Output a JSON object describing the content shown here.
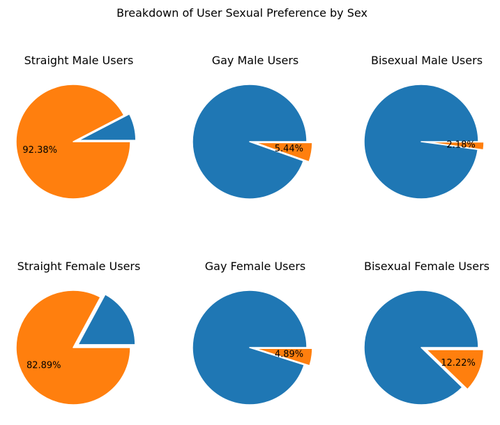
{
  "figure_title": "Breakdown of User Sexual Preference by Sex",
  "colors": {
    "slice_1": "#1f77b4",
    "slice_2": "#ff7f0e",
    "edge": "#ffffff"
  },
  "chart_data": [
    {
      "type": "pie",
      "title": "Straight Male Users",
      "slices": [
        {
          "value": 7.62,
          "color": "#1f77b4",
          "explode": true,
          "label": ""
        },
        {
          "value": 92.38,
          "color": "#ff7f0e",
          "explode": false,
          "label": "92.38%"
        }
      ]
    },
    {
      "type": "pie",
      "title": "Gay Male Users",
      "slices": [
        {
          "value": 94.56,
          "color": "#1f77b4",
          "explode": false,
          "label": ""
        },
        {
          "value": 5.44,
          "color": "#ff7f0e",
          "explode": true,
          "label": "5.44%"
        }
      ]
    },
    {
      "type": "pie",
      "title": "Bisexual Male Users",
      "slices": [
        {
          "value": 97.82,
          "color": "#1f77b4",
          "explode": false,
          "label": ""
        },
        {
          "value": 2.18,
          "color": "#ff7f0e",
          "explode": true,
          "label": "2.18%"
        }
      ]
    },
    {
      "type": "pie",
      "title": "Straight Female Users",
      "slices": [
        {
          "value": 17.11,
          "color": "#1f77b4",
          "explode": true,
          "label": ""
        },
        {
          "value": 82.89,
          "color": "#ff7f0e",
          "explode": false,
          "label": "82.89%"
        }
      ]
    },
    {
      "type": "pie",
      "title": "Gay Female Users",
      "slices": [
        {
          "value": 95.11,
          "color": "#1f77b4",
          "explode": false,
          "label": ""
        },
        {
          "value": 4.89,
          "color": "#ff7f0e",
          "explode": true,
          "label": "4.89%"
        }
      ]
    },
    {
      "type": "pie",
      "title": "Bisexual Female Users",
      "slices": [
        {
          "value": 87.78,
          "color": "#1f77b4",
          "explode": false,
          "label": ""
        },
        {
          "value": 12.22,
          "color": "#ff7f0e",
          "explode": true,
          "label": "12.22%"
        }
      ]
    }
  ]
}
